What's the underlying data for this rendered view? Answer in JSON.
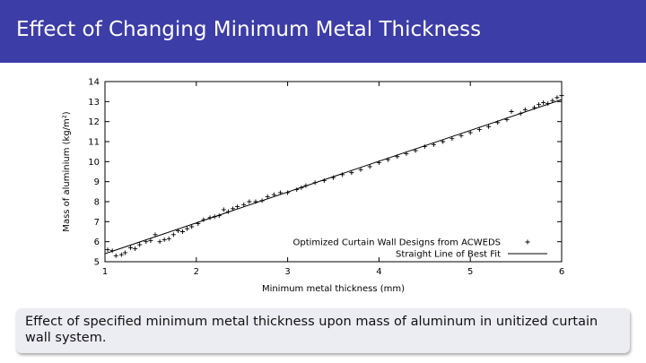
{
  "slide": {
    "title": "Effect of Changing Minimum Metal Thickness",
    "caption": "Effect of specified minimum metal thickness upon mass of aluminum in unitized curtain wall system."
  },
  "colors": {
    "title_bar": "#3d3da8",
    "caption_box": "#ececf3",
    "fit_line": "#000000",
    "points": "#000000"
  },
  "chart_data": {
    "type": "scatter",
    "title": "",
    "xlabel": "Minimum metal thickness (mm)",
    "ylabel": "Mass of aluminium (kg/m²)",
    "xlim": [
      1,
      6
    ],
    "ylim": [
      5,
      14
    ],
    "xticks": [
      1,
      2,
      3,
      4,
      5,
      6
    ],
    "yticks": [
      5,
      6,
      7,
      8,
      9,
      10,
      11,
      12,
      13,
      14
    ],
    "legend_position": "bottom-right",
    "series": [
      {
        "name": "Optimized Curtain Wall Designs from ACWEDS",
        "marker": "plus",
        "points": [
          [
            1.03,
            5.6
          ],
          [
            1.08,
            5.55
          ],
          [
            1.12,
            5.3
          ],
          [
            1.18,
            5.35
          ],
          [
            1.22,
            5.45
          ],
          [
            1.28,
            5.7
          ],
          [
            1.33,
            5.65
          ],
          [
            1.38,
            5.85
          ],
          [
            1.45,
            6.0
          ],
          [
            1.5,
            6.05
          ],
          [
            1.55,
            6.35
          ],
          [
            1.6,
            6.0
          ],
          [
            1.65,
            6.1
          ],
          [
            1.7,
            6.15
          ],
          [
            1.75,
            6.35
          ],
          [
            1.8,
            6.55
          ],
          [
            1.85,
            6.5
          ],
          [
            1.9,
            6.65
          ],
          [
            1.95,
            6.75
          ],
          [
            2.02,
            6.9
          ],
          [
            2.08,
            7.1
          ],
          [
            2.15,
            7.2
          ],
          [
            2.2,
            7.25
          ],
          [
            2.25,
            7.3
          ],
          [
            2.3,
            7.6
          ],
          [
            2.35,
            7.5
          ],
          [
            2.4,
            7.65
          ],
          [
            2.45,
            7.75
          ],
          [
            2.52,
            7.85
          ],
          [
            2.58,
            8.0
          ],
          [
            2.65,
            8.0
          ],
          [
            2.72,
            8.05
          ],
          [
            2.78,
            8.25
          ],
          [
            2.85,
            8.35
          ],
          [
            2.92,
            8.45
          ],
          [
            3.0,
            8.45
          ],
          [
            3.1,
            8.6
          ],
          [
            3.15,
            8.7
          ],
          [
            3.2,
            8.8
          ],
          [
            3.3,
            8.95
          ],
          [
            3.4,
            9.05
          ],
          [
            3.5,
            9.2
          ],
          [
            3.6,
            9.35
          ],
          [
            3.7,
            9.45
          ],
          [
            3.8,
            9.6
          ],
          [
            3.9,
            9.75
          ],
          [
            4.0,
            9.95
          ],
          [
            4.1,
            10.1
          ],
          [
            4.2,
            10.25
          ],
          [
            4.3,
            10.4
          ],
          [
            4.4,
            10.55
          ],
          [
            4.5,
            10.75
          ],
          [
            4.6,
            10.85
          ],
          [
            4.7,
            11.0
          ],
          [
            4.8,
            11.15
          ],
          [
            4.9,
            11.3
          ],
          [
            5.0,
            11.45
          ],
          [
            5.1,
            11.6
          ],
          [
            5.2,
            11.75
          ],
          [
            5.3,
            11.95
          ],
          [
            5.4,
            12.1
          ],
          [
            5.45,
            12.5
          ],
          [
            5.55,
            12.4
          ],
          [
            5.6,
            12.6
          ],
          [
            5.7,
            12.7
          ],
          [
            5.75,
            12.85
          ],
          [
            5.8,
            12.95
          ],
          [
            5.85,
            12.9
          ],
          [
            5.9,
            13.05
          ],
          [
            5.95,
            13.2
          ],
          [
            6.0,
            13.3
          ]
        ]
      },
      {
        "name": "Straight Line of Best Fit",
        "type": "line",
        "points": [
          [
            1,
            5.4
          ],
          [
            6,
            13.1
          ]
        ]
      }
    ]
  }
}
